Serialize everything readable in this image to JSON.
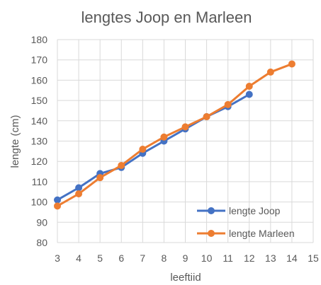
{
  "chart_data": {
    "type": "line",
    "title": "lengtes Joop en Marleen",
    "xlabel": "leeftiid",
    "ylabel": "lengte (cm)",
    "xlim": [
      3,
      15
    ],
    "ylim": [
      80,
      180
    ],
    "xticks": [
      3,
      4,
      5,
      6,
      7,
      8,
      9,
      10,
      11,
      12,
      13,
      14,
      15
    ],
    "yticks": [
      80,
      90,
      100,
      110,
      120,
      130,
      140,
      150,
      160,
      170,
      180
    ],
    "grid": true,
    "legend_position": "bottom-right",
    "series": [
      {
        "name": "lengte Joop",
        "color": "#4472C4",
        "x": [
          3,
          4,
          5,
          6,
          7,
          8,
          9,
          10,
          11,
          12
        ],
        "y": [
          101,
          107,
          114,
          117,
          124,
          130,
          136,
          142,
          147,
          153
        ]
      },
      {
        "name": "lengte Marleen",
        "color": "#ED7D31",
        "x": [
          3,
          4,
          5,
          6,
          7,
          8,
          9,
          10,
          11,
          12,
          13,
          14
        ],
        "y": [
          98,
          104,
          112,
          118,
          126,
          132,
          137,
          142,
          148,
          157,
          164,
          168
        ]
      }
    ]
  }
}
